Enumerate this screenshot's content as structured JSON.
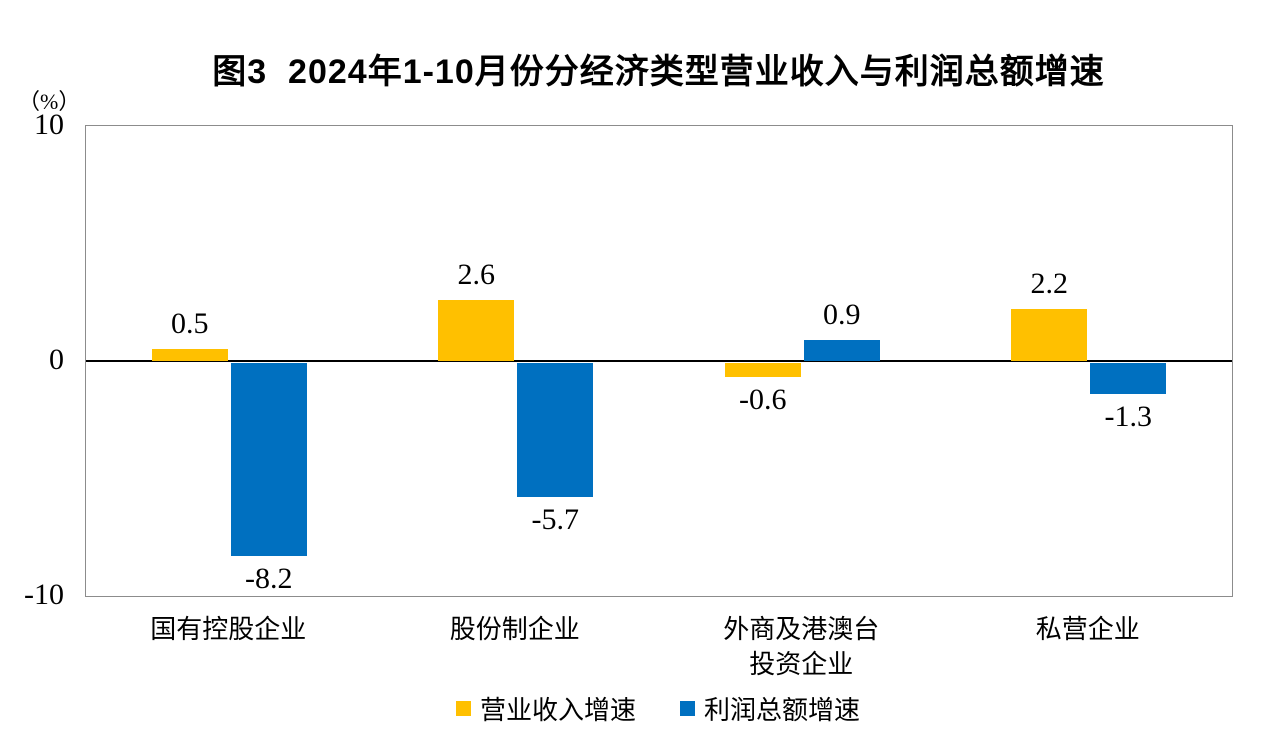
{
  "title": "图3  2024年1-10月份分经济类型营业收入与利润总额增速",
  "y_axis": {
    "unit_label": "（%）",
    "ticks": [
      {
        "label": "10",
        "value": 10
      },
      {
        "label": "0",
        "value": 0
      },
      {
        "label": "-10",
        "value": -10
      }
    ]
  },
  "chart_data": {
    "type": "bar",
    "title": "图3 2024年1-10月份分经济类型营业收入与利润总额增速",
    "categories": [
      "国有控股企业",
      "股份制企业",
      "外商及港澳台投资企业",
      "私营企业"
    ],
    "category_display": [
      "国有控股企业",
      "股份制企业",
      "外商及港澳台\n投资企业",
      "私营企业"
    ],
    "series": [
      {
        "name": "营业收入增速",
        "color": "#FFC000",
        "values": [
          0.5,
          2.6,
          -0.6,
          2.2
        ]
      },
      {
        "name": "利润总额增速",
        "color": "#0070C0",
        "values": [
          -8.2,
          -5.7,
          0.9,
          -1.3
        ]
      }
    ],
    "xlabel": "",
    "ylabel": "（%）",
    "ylim": [
      -10,
      10
    ],
    "grid": false,
    "legend_position": "bottom",
    "value_labels": true
  }
}
